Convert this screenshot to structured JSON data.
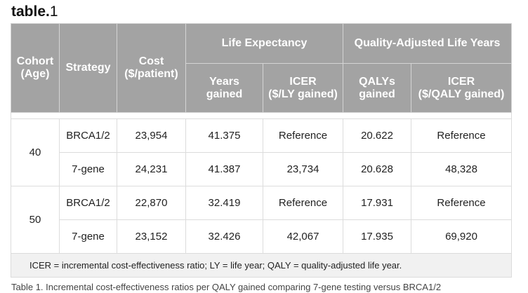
{
  "caption": {
    "prefix": "table.",
    "number": "1"
  },
  "table": {
    "headers": {
      "cohort": "Cohort\n(Age)",
      "strategy": "Strategy",
      "cost": "Cost\n($/patient)",
      "life_expectancy": "Life Expectancy",
      "qaly_group": "Quality-Adjusted Life Years",
      "years_gained": "Years\ngained",
      "icer_ly": "ICER\n($/LY gained)",
      "qalys_gained": "QALYs\ngained",
      "icer_qaly": "ICER\n($/QALY gained)"
    },
    "groups": [
      {
        "cohort": "40",
        "rows": [
          {
            "strategy": "BRCA1/2",
            "cost": "23,954",
            "years": "41.375",
            "icer_ly": "Reference",
            "qalys": "20.622",
            "icer_qaly": "Reference"
          },
          {
            "strategy": "7-gene",
            "cost": "24,231",
            "years": "41.387",
            "icer_ly": "23,734",
            "qalys": "20.628",
            "icer_qaly": "48,328"
          }
        ]
      },
      {
        "cohort": "50",
        "rows": [
          {
            "strategy": "BRCA1/2",
            "cost": "22,870",
            "years": "32.419",
            "icer_ly": "Reference",
            "qalys": "17.931",
            "icer_qaly": "Reference"
          },
          {
            "strategy": "7-gene",
            "cost": "23,152",
            "years": "32.426",
            "icer_ly": "42,067",
            "qalys": "17.935",
            "icer_qaly": "69,920"
          }
        ]
      }
    ],
    "footnote": "ICER = incremental cost-effectiveness ratio; LY = life year; QALY = quality-adjusted life year."
  },
  "below_text": "Table 1. Incremental cost-effectiveness ratios per QALY gained comparing 7-gene testing versus BRCA1/2"
}
